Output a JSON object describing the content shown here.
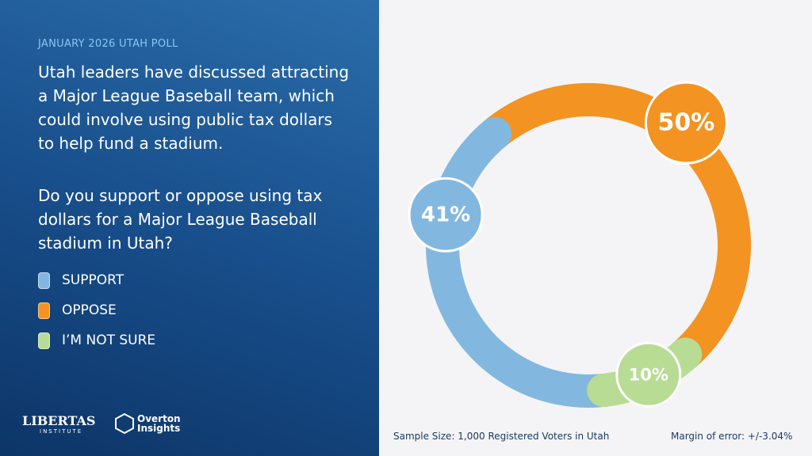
{
  "chart_data": {
    "type": "pie",
    "kicker": "JANUARY 2026 UTAH POLL",
    "title": "Utah leaders have discussed attracting a Major League Baseball team, which could involve using public tax dollars to help fund a stadium.",
    "subtitle": "Do you support or oppose using tax dollars for a Major League Baseball stadium in Utah?",
    "categories": [
      "SUPPORT",
      "OPPOSE",
      "I’M NOT SURE"
    ],
    "values": [
      41,
      50,
      10
    ],
    "value_labels": [
      "41%",
      "50%",
      "10%"
    ],
    "colors": [
      "#82b8e0",
      "#f39322",
      "#b8dc94"
    ],
    "footnotes": [
      "Sample Size: 1,000 Registered Voters in Utah",
      "Margin of error: +/-3.04%"
    ]
  },
  "logos": {
    "libertas": "LIBERTAS",
    "libertas_sub": "INSTITUTE",
    "overton": "Overton",
    "overton_sub": "Insights"
  }
}
